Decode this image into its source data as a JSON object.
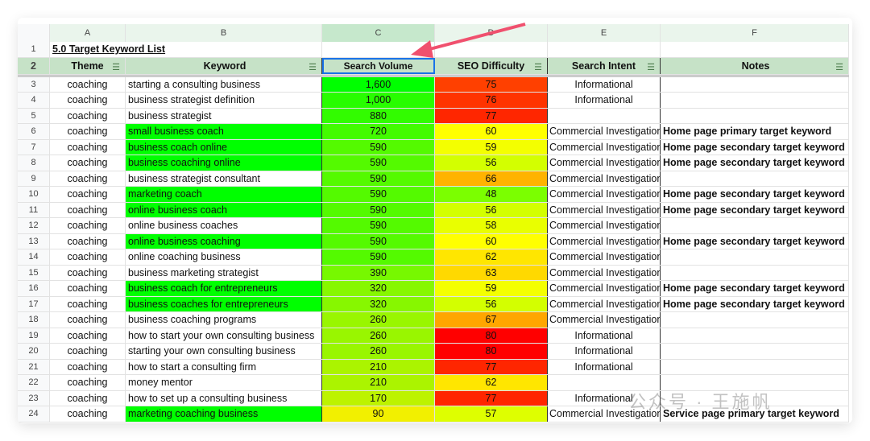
{
  "columns": [
    "A",
    "B",
    "C",
    "D",
    "E",
    "F"
  ],
  "title": "5.0 Target Keyword List",
  "headers": [
    "Theme",
    "Keyword",
    "Search Volume",
    "SEO Difficulty",
    "Search Intent",
    "Notes"
  ],
  "highlight_color": "#00ff00",
  "rows": [
    {
      "n": "3",
      "theme": "coaching",
      "kw": "starting a consulting business",
      "vol": "1,600",
      "diff": "75",
      "intent": "Informational",
      "notes": "",
      "hl": false
    },
    {
      "n": "4",
      "theme": "coaching",
      "kw": "business strategist definition",
      "vol": "1,000",
      "diff": "76",
      "intent": "Informational",
      "notes": "",
      "hl": false
    },
    {
      "n": "5",
      "theme": "coaching",
      "kw": "business strategist",
      "vol": "880",
      "diff": "77",
      "intent": "",
      "notes": "",
      "hl": false
    },
    {
      "n": "6",
      "theme": "coaching",
      "kw": "small business coach",
      "vol": "720",
      "diff": "60",
      "intent": "Commercial Investigation",
      "notes": "Home page primary target keyword",
      "hl": true
    },
    {
      "n": "7",
      "theme": "coaching",
      "kw": "business coach online",
      "vol": "590",
      "diff": "59",
      "intent": "Commercial Investigation",
      "notes": "Home page secondary target keyword",
      "hl": true
    },
    {
      "n": "8",
      "theme": "coaching",
      "kw": "business coaching online",
      "vol": "590",
      "diff": "56",
      "intent": "Commercial Investigation",
      "notes": "Home page secondary target keyword",
      "hl": true
    },
    {
      "n": "9",
      "theme": "coaching",
      "kw": "business strategist consultant",
      "vol": "590",
      "diff": "66",
      "intent": "Commercial Investigation",
      "notes": "",
      "hl": false
    },
    {
      "n": "10",
      "theme": "coaching",
      "kw": "marketing coach",
      "vol": "590",
      "diff": "48",
      "intent": "Commercial Investigation",
      "notes": "Home page secondary target keyword",
      "hl": true
    },
    {
      "n": "11",
      "theme": "coaching",
      "kw": "online business coach",
      "vol": "590",
      "diff": "56",
      "intent": "Commercial Investigation",
      "notes": "Home page secondary target keyword",
      "hl": true
    },
    {
      "n": "12",
      "theme": "coaching",
      "kw": "online business coaches",
      "vol": "590",
      "diff": "58",
      "intent": "Commercial Investigation",
      "notes": "",
      "hl": false
    },
    {
      "n": "13",
      "theme": "coaching",
      "kw": "online business coaching",
      "vol": "590",
      "diff": "60",
      "intent": "Commercial Investigation",
      "notes": "Home page secondary target keyword",
      "hl": true
    },
    {
      "n": "14",
      "theme": "coaching",
      "kw": "online coaching business",
      "vol": "590",
      "diff": "62",
      "intent": "Commercial Investigation",
      "notes": "",
      "hl": false
    },
    {
      "n": "15",
      "theme": "coaching",
      "kw": "business marketing strategist",
      "vol": "390",
      "diff": "63",
      "intent": "Commercial Investigation",
      "notes": "",
      "hl": false
    },
    {
      "n": "16",
      "theme": "coaching",
      "kw": "business coach for entrepreneurs",
      "vol": "320",
      "diff": "59",
      "intent": "Commercial Investigation",
      "notes": "Home page secondary target keyword",
      "hl": true
    },
    {
      "n": "17",
      "theme": "coaching",
      "kw": "business coaches for entrepreneurs",
      "vol": "320",
      "diff": "56",
      "intent": "Commercial Investigation",
      "notes": "Home page secondary target keyword",
      "hl": true
    },
    {
      "n": "18",
      "theme": "coaching",
      "kw": "business coaching programs",
      "vol": "260",
      "diff": "67",
      "intent": "Commercial Investigation",
      "notes": "",
      "hl": false
    },
    {
      "n": "19",
      "theme": "coaching",
      "kw": "how to start your own consulting business",
      "vol": "260",
      "diff": "80",
      "intent": "Informational",
      "notes": "",
      "hl": false
    },
    {
      "n": "20",
      "theme": "coaching",
      "kw": "starting your own consulting business",
      "vol": "260",
      "diff": "80",
      "intent": "Informational",
      "notes": "",
      "hl": false
    },
    {
      "n": "21",
      "theme": "coaching",
      "kw": "how to start a consulting firm",
      "vol": "210",
      "diff": "77",
      "intent": "Informational",
      "notes": "",
      "hl": false
    },
    {
      "n": "22",
      "theme": "coaching",
      "kw": "money mentor",
      "vol": "210",
      "diff": "62",
      "intent": "",
      "notes": "",
      "hl": false
    },
    {
      "n": "23",
      "theme": "coaching",
      "kw": "how to set up a consulting business",
      "vol": "170",
      "diff": "77",
      "intent": "Informational",
      "notes": "",
      "hl": false
    },
    {
      "n": "24",
      "theme": "coaching",
      "kw": "marketing coaching business",
      "vol": "90",
      "diff": "57",
      "intent": "Commercial Investigation",
      "notes": "Service page primary target keyword",
      "hl": true
    }
  ],
  "watermark": "公众号 · 王施帆",
  "arrow_color": "#f0506e"
}
